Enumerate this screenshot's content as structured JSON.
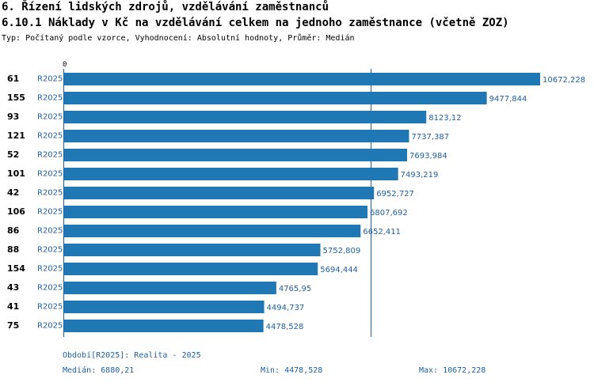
{
  "header": {
    "title": "6. Řízení lidských zdrojů, vzdělávání zaměstnanců",
    "subtitle": "6.10.1 Náklady v Kč na vzdělávání celkem na jednoho zaměstnance (včetně ZOZ)",
    "type_line": "Typ: Počítaný podle vzorce, Vyhodnocení: Absolutní hodnoty, Průměr: Medián"
  },
  "footer": {
    "period": "Období[R2025]: Realita - 2025",
    "median": "Medián: 6880,21",
    "min": "Min: 4478,528",
    "max": "Max: 10672,228"
  },
  "chart_data": {
    "type": "bar",
    "orientation": "horizontal",
    "x_axis_start_label": "0",
    "xlim": [
      0,
      10672.228
    ],
    "median_line": 6880.21,
    "categories": [
      "61",
      "155",
      "93",
      "121",
      "52",
      "101",
      "42",
      "106",
      "86",
      "88",
      "154",
      "43",
      "41",
      "75"
    ],
    "series_label": "R2025",
    "values": [
      10672.228,
      9477.844,
      8123.12,
      7737.387,
      7693.984,
      7493.219,
      6952.727,
      6807.692,
      6652.411,
      5752.809,
      5694.444,
      4765.95,
      4494.737,
      4478.528
    ],
    "value_labels": [
      "10672,228",
      "9477,844",
      "8123,12",
      "7737,387",
      "7693,984",
      "7493,219",
      "6952,727",
      "6807,692",
      "6652,411",
      "5752,809",
      "5694,444",
      "4765,95",
      "4494,737",
      "4478,528"
    ],
    "colors": {
      "bar": "#1f77b4",
      "label": "#1f5fa0",
      "axis": "#1f5fa0",
      "median": "#1f5fa0"
    }
  }
}
